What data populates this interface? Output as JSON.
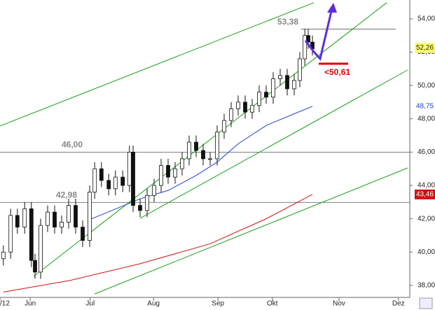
{
  "chart_data": {
    "type": "candlestick",
    "x": [
      1.2,
      3.8,
      6.2,
      8.8,
      11.2,
      12.5,
      14.5,
      17,
      19.5,
      22,
      24.5,
      27,
      29.5,
      32,
      33.8,
      36.2,
      38.8,
      41.2,
      43.8,
      46.2,
      47.5,
      50,
      52.5,
      55,
      57.5,
      60,
      62.5,
      65,
      67.5,
      70,
      72.5,
      75,
      77.5,
      80,
      82.5,
      85,
      87.5,
      90,
      92.5,
      95,
      97.5,
      100,
      102.5,
      105,
      107,
      108.8,
      110,
      111.5
    ],
    "open": [
      39.6,
      40.0,
      42.2,
      41.5,
      42.6,
      39.5,
      38.8,
      41.6,
      42.4,
      41.5,
      41.8,
      42.8,
      41.5,
      40.7,
      43.6,
      45.0,
      44.3,
      43.8,
      44.5,
      44.0,
      46.0,
      42.8,
      42.5,
      43.4,
      44.0,
      45.2,
      44.5,
      45.0,
      45.6,
      46.6,
      46.1,
      45.6,
      45.6,
      47.2,
      47.9,
      48.6,
      49.0,
      48.4,
      48.8,
      49.6,
      49.3,
      50.4,
      50.6,
      49.8,
      50.3,
      51.6,
      53.0,
      52.6
    ],
    "high": [
      40.4,
      42.6,
      42.6,
      43.0,
      43.0,
      39.9,
      42.0,
      42.8,
      42.8,
      42.2,
      43.2,
      43.2,
      41.9,
      44.0,
      45.4,
      45.4,
      44.7,
      44.9,
      44.9,
      46.4,
      46.4,
      43.2,
      43.8,
      44.4,
      45.6,
      45.6,
      45.4,
      46.0,
      47.0,
      47.0,
      46.5,
      46.0,
      47.6,
      48.3,
      49.0,
      49.4,
      49.4,
      49.2,
      50.0,
      50.0,
      50.8,
      51.0,
      51.0,
      50.7,
      52.0,
      53.4,
      53.4,
      53.0
    ],
    "low": [
      39.2,
      39.6,
      41.1,
      41.1,
      39.1,
      38.4,
      38.4,
      41.2,
      41.1,
      41.1,
      41.4,
      41.1,
      40.3,
      40.3,
      43.2,
      43.9,
      43.4,
      43.4,
      43.6,
      43.6,
      42.4,
      42.1,
      42.1,
      43.0,
      43.6,
      44.1,
      44.1,
      44.6,
      45.2,
      45.7,
      45.2,
      45.2,
      45.2,
      46.8,
      47.5,
      48.2,
      48.0,
      48.0,
      48.4,
      48.9,
      48.9,
      50.0,
      49.4,
      49.4,
      49.9,
      51.2,
      52.2,
      51.8
    ],
    "close": [
      40.0,
      42.2,
      41.5,
      42.6,
      39.5,
      38.8,
      41.6,
      42.4,
      41.5,
      41.8,
      42.8,
      41.5,
      40.7,
      43.6,
      45.0,
      44.3,
      43.8,
      44.5,
      44.0,
      46.0,
      42.8,
      42.5,
      43.4,
      44.0,
      45.2,
      44.5,
      45.0,
      45.6,
      46.6,
      46.1,
      45.6,
      45.6,
      47.2,
      47.9,
      48.6,
      49.0,
      48.4,
      48.8,
      49.6,
      49.3,
      50.4,
      50.6,
      49.8,
      50.3,
      51.6,
      53.0,
      52.6,
      52.2
    ],
    "series": [
      {
        "color": "#1f3fd0",
        "x": [
          31.2,
          40,
          50,
          60,
          70,
          77.5,
          85,
          95,
          105,
          111.5
        ],
        "values": [
          41.9,
          42.5,
          43.2,
          43.7,
          44.6,
          45.4,
          46.5,
          47.6,
          48.3,
          48.75
        ],
        "value_label": {
          "value": 48.75,
          "label": "48,75"
        }
      },
      {
        "color": "#d01010",
        "x": [
          1.2,
          25,
          50,
          75,
          95,
          111.5
        ],
        "values": [
          37.6,
          38.3,
          39.3,
          40.5,
          42.0,
          43.46
        ],
        "value_label": {
          "value": 43.46,
          "label": "43,46"
        }
      }
    ],
    "last_price": {
      "value": 52.26,
      "label": "52,26"
    },
    "trend_lines": [
      {
        "x": [
          0,
          112
        ],
        "values": [
          47.57,
          54.97
        ]
      },
      {
        "x": [
          12,
          138
        ],
        "values": [
          38.54,
          54.97
        ]
      },
      {
        "x": [
          50,
          145.5
        ],
        "values": [
          42.03,
          50.93
        ]
      },
      {
        "x": [
          33.8,
          145.5
        ],
        "values": [
          37.49,
          45.05
        ]
      }
    ],
    "levels": [
      {
        "value": 46.0,
        "label": "46,00",
        "x": [
          0,
          146.25
        ],
        "label_x": 22
      },
      {
        "value": 42.98,
        "label": "42,98",
        "x": [
          0,
          146.25
        ],
        "label_x": 20
      },
      {
        "value": 53.38,
        "label": "53,38",
        "x": [
          107.5,
          141.2
        ],
        "label_x": 99
      }
    ],
    "annotation": "<50,61",
    "xlim": [
      0,
      146.25
    ],
    "ylim": [
      37.28,
      55.13
    ],
    "xticks": [
      {
        "value": 0,
        "label": "/12"
      },
      {
        "value": 10.8,
        "label": "Jun"
      },
      {
        "value": 32.2,
        "label": "Jul"
      },
      {
        "value": 54.8,
        "label": "Aug"
      },
      {
        "value": 77.8,
        "label": "Sep"
      },
      {
        "value": 97.2,
        "label": "Okt"
      },
      {
        "value": 121,
        "label": "Nov"
      },
      {
        "value": 142.2,
        "label": "Dez"
      }
    ],
    "yticks": [
      {
        "value": 38,
        "label": "38,00"
      },
      {
        "value": 40,
        "label": "40,00"
      },
      {
        "value": 42,
        "label": "42,00"
      },
      {
        "value": 44,
        "label": "44,00"
      },
      {
        "value": 46,
        "label": "46,00"
      },
      {
        "value": 48,
        "label": "48,00"
      },
      {
        "value": 50,
        "label": "50,00"
      },
      {
        "value": 52,
        "label": "52,00"
      },
      {
        "value": 54,
        "label": "54,00"
      }
    ]
  }
}
